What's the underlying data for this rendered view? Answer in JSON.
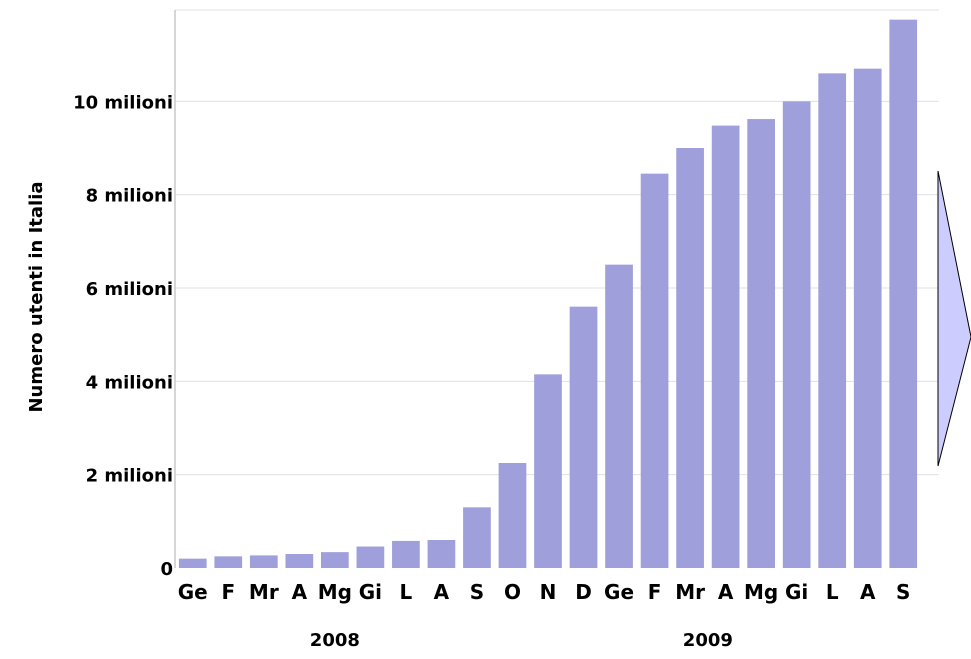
{
  "chart_data": {
    "type": "bar",
    "title": "",
    "ylabel": "Numero utenti in Italia",
    "xlabel": "",
    "ylim": [
      0,
      12000000
    ],
    "grid": true,
    "categories": [
      "Ge",
      "F",
      "Mr",
      "A",
      "Mg",
      "Gi",
      "L",
      "A",
      "S",
      "O",
      "N",
      "D",
      "Ge",
      "F",
      "Mr",
      "A",
      "Mg",
      "Gi",
      "L",
      "A",
      "S"
    ],
    "values": [
      200000,
      250000,
      270000,
      300000,
      340000,
      460000,
      580000,
      600000,
      1300000,
      2250000,
      4150000,
      5600000,
      6500000,
      8450000,
      9000000,
      9480000,
      9620000,
      10000000,
      10600000,
      10700000,
      11750000
    ],
    "yticks": [
      {
        "value": 0,
        "label": "0"
      },
      {
        "value": 2000000,
        "label": "2 milioni"
      },
      {
        "value": 4000000,
        "label": "4 milioni"
      },
      {
        "value": 6000000,
        "label": "6 milioni"
      },
      {
        "value": 8000000,
        "label": "8 milioni"
      },
      {
        "value": 10000000,
        "label": "10 milioni"
      }
    ],
    "year_groups": [
      {
        "label": "2008",
        "from": 0,
        "to": 8
      },
      {
        "label": "2009",
        "from": 9,
        "to": 20
      }
    ],
    "colors": {
      "bar": "#9f9fdb",
      "grid": "#e0e0e0",
      "axis": "#c8c8c8",
      "arrow_fill": "#ccccff",
      "arrow_stroke": "#000000"
    }
  }
}
